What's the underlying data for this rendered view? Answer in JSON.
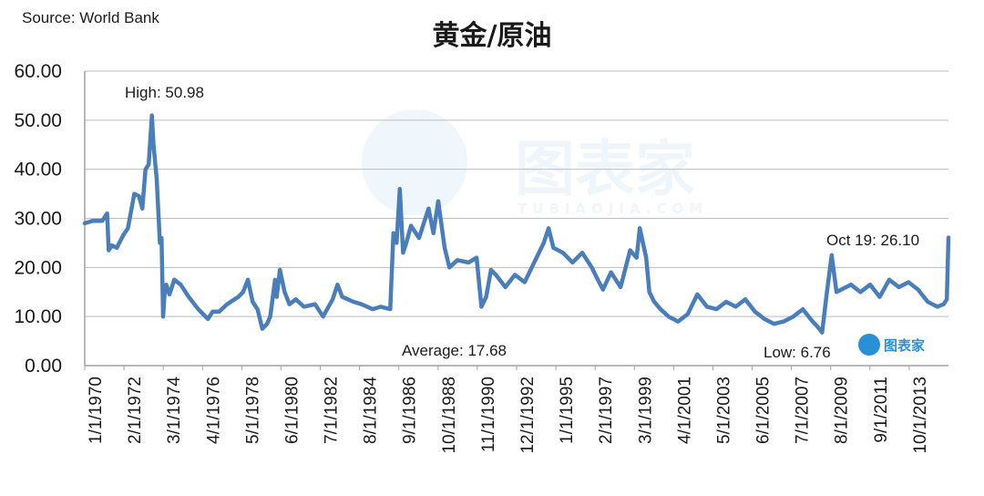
{
  "source": "Source: World Bank",
  "watermark": {
    "name": "图表家",
    "url": "TUBIAOJIA.COM"
  },
  "chart_data": {
    "type": "line",
    "title": "黄金/原油",
    "xlabel": "",
    "ylabel": "",
    "ylim": [
      0,
      60
    ],
    "yticks": [
      "0.00",
      "10.00",
      "20.00",
      "30.00",
      "40.00",
      "50.00",
      "60.00"
    ],
    "xticks": [
      "1/1/1970",
      "2/1/1972",
      "3/1/1974",
      "4/1/1976",
      "5/1/1978",
      "6/1/1980",
      "7/1/1982",
      "8/1/1984",
      "9/1/1986",
      "10/1/1988",
      "11/1/1990",
      "12/1/1992",
      "1/1/1995",
      "2/1/1997",
      "3/1/1999",
      "4/1/2001",
      "5/1/2003",
      "6/1/2005",
      "7/1/2007",
      "8/1/2009",
      "9/1/2011",
      "10/1/2013"
    ],
    "grid": true,
    "line_color": "#4a7ebb",
    "annotations": {
      "high": "High: 50.98",
      "average": "Average: 17.68",
      "low": "Low: 6.76",
      "latest": "Oct 19: 26.10"
    },
    "series": [
      {
        "x": [
          "1970-01",
          "1970-06",
          "1970-12",
          "1971-03",
          "1971-04",
          "1971-06",
          "1971-09",
          "1972-01",
          "1972-04",
          "1972-08",
          "1972-11",
          "1973-01",
          "1973-03",
          "1973-05",
          "1973-07",
          "1973-08",
          "1973-10",
          "1973-12",
          "1974-01",
          "1974-02",
          "1974-03",
          "1974-04",
          "1974-06",
          "1974-09",
          "1975-01",
          "1975-06",
          "1975-12",
          "1976-03",
          "1976-06",
          "1976-09",
          "1977-01",
          "1977-06",
          "1978-01",
          "1978-04",
          "1978-07",
          "1978-10",
          "1979-01",
          "1979-04",
          "1979-07",
          "1979-09",
          "1979-12",
          "1980-01",
          "1980-03",
          "1980-06",
          "1980-09",
          "1981-01",
          "1981-06",
          "1982-01",
          "1982-06",
          "1982-12",
          "1983-03",
          "1983-06",
          "1984-01",
          "1984-06",
          "1985-01",
          "1985-06",
          "1985-12",
          "1986-02",
          "1986-04",
          "1986-06",
          "1986-08",
          "1986-10",
          "1987-01",
          "1987-06",
          "1987-12",
          "1988-03",
          "1988-06",
          "1988-10",
          "1989-01",
          "1989-06",
          "1990-01",
          "1990-06",
          "1990-09",
          "1990-12",
          "1991-03",
          "1991-06",
          "1991-12",
          "1992-06",
          "1992-12",
          "1993-06",
          "1993-12",
          "1994-03",
          "1994-06",
          "1994-12",
          "1995-06",
          "1995-12",
          "1996-06",
          "1996-09",
          "1997-01",
          "1997-06",
          "1997-12",
          "1998-06",
          "1998-10",
          "1998-12",
          "1999-02",
          "1999-04",
          "1999-06",
          "1999-09",
          "2000-01",
          "2000-06",
          "2000-12",
          "2001-06",
          "2001-12",
          "2002-06",
          "2002-12",
          "2003-06",
          "2003-12",
          "2004-06",
          "2004-12",
          "2005-06",
          "2005-12",
          "2006-06",
          "2006-12",
          "2007-06",
          "2007-12",
          "2008-03",
          "2008-06",
          "2008-09",
          "2008-12",
          "2009-03",
          "2009-06",
          "2009-12",
          "2010-06",
          "2010-12",
          "2011-06",
          "2011-12",
          "2012-06",
          "2012-12",
          "2013-06",
          "2013-12",
          "2014-06",
          "2014-10",
          "2014-12",
          "2015-01"
        ],
        "values": [
          29.0,
          29.5,
          29.5,
          31.0,
          23.5,
          24.5,
          24.0,
          26.5,
          28.0,
          35.0,
          34.5,
          32.0,
          40.0,
          41.0,
          50.98,
          45.0,
          38.0,
          25.0,
          26.0,
          10.0,
          15.0,
          16.5,
          14.5,
          17.5,
          16.5,
          14.0,
          11.5,
          10.5,
          9.5,
          11.0,
          11.0,
          12.5,
          14.0,
          15.0,
          17.5,
          13.0,
          11.5,
          7.5,
          8.5,
          10.0,
          17.5,
          14.0,
          19.5,
          15.0,
          12.5,
          13.5,
          12.0,
          12.5,
          10.0,
          13.5,
          16.5,
          14.0,
          13.0,
          12.5,
          11.5,
          12.0,
          11.5,
          27.0,
          25.0,
          36.0,
          23.0,
          25.0,
          28.5,
          26.0,
          32.0,
          27.0,
          33.5,
          24.0,
          20.0,
          21.5,
          21.0,
          22.0,
          12.0,
          14.0,
          19.5,
          18.5,
          16.0,
          18.5,
          17.0,
          21.0,
          25.0,
          28.0,
          24.0,
          23.0,
          21.0,
          23.0,
          20.0,
          18.0,
          15.5,
          19.0,
          16.0,
          23.5,
          22.0,
          28.0,
          25.0,
          22.0,
          15.0,
          13.0,
          11.5,
          10.0,
          9.0,
          10.5,
          14.5,
          12.0,
          11.5,
          13.0,
          12.0,
          13.5,
          11.0,
          9.5,
          8.5,
          9.0,
          10.0,
          11.5,
          9.0,
          8.0,
          6.76,
          15.0,
          22.5,
          15.0,
          15.5,
          16.5,
          15.0,
          16.5,
          14.0,
          17.5,
          16.0,
          17.0,
          15.5,
          13.0,
          12.0,
          12.5,
          13.5,
          26.1
        ]
      }
    ]
  }
}
